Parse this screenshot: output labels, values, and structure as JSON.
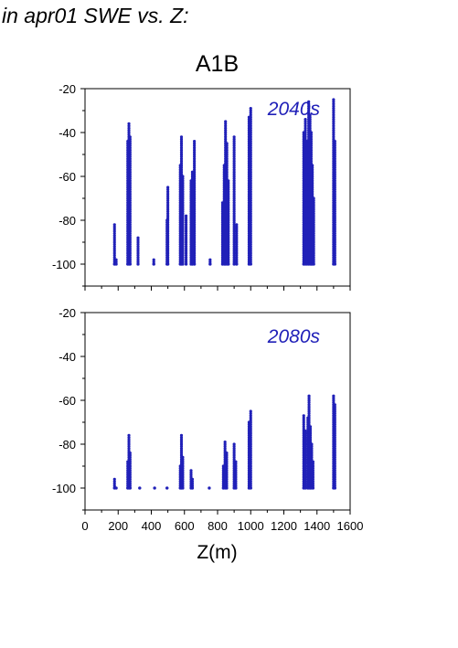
{
  "header": {
    "title": "in apr01 SWE vs. Z:"
  },
  "scenario_label": "A1B",
  "chart_data": [
    {
      "type": "scatter",
      "panel_label": "2040s",
      "xlabel": "Z(m)",
      "ylabel": "",
      "xlim": [
        0,
        1600
      ],
      "ylim": [
        -110,
        -20
      ],
      "x_ticks": [
        0,
        200,
        400,
        600,
        800,
        1000,
        1200,
        1400,
        1600
      ],
      "y_ticks": [
        -20,
        -40,
        -60,
        -80,
        -100
      ],
      "show_x_tick_labels": false,
      "point_color": "#2020b8",
      "columns": [
        {
          "x": 178,
          "min": -100,
          "max": -82
        },
        {
          "x": 188,
          "min": -100,
          "max": -98
        },
        {
          "x": 258,
          "min": -100,
          "max": -44
        },
        {
          "x": 265,
          "min": -100,
          "max": -36
        },
        {
          "x": 272,
          "min": -100,
          "max": -42
        },
        {
          "x": 320,
          "min": -100,
          "max": -88
        },
        {
          "x": 415,
          "min": -100,
          "max": -98
        },
        {
          "x": 495,
          "min": -100,
          "max": -80
        },
        {
          "x": 500,
          "min": -100,
          "max": -65
        },
        {
          "x": 575,
          "min": -100,
          "max": -55
        },
        {
          "x": 582,
          "min": -100,
          "max": -42
        },
        {
          "x": 590,
          "min": -100,
          "max": -60
        },
        {
          "x": 610,
          "min": -100,
          "max": -78
        },
        {
          "x": 640,
          "min": -100,
          "max": -62
        },
        {
          "x": 648,
          "min": -100,
          "max": -58
        },
        {
          "x": 660,
          "min": -100,
          "max": -44
        },
        {
          "x": 755,
          "min": -100,
          "max": -98
        },
        {
          "x": 830,
          "min": -100,
          "max": -72
        },
        {
          "x": 840,
          "min": -100,
          "max": -55
        },
        {
          "x": 848,
          "min": -100,
          "max": -35
        },
        {
          "x": 856,
          "min": -100,
          "max": -45
        },
        {
          "x": 865,
          "min": -100,
          "max": -62
        },
        {
          "x": 900,
          "min": -100,
          "max": -42
        },
        {
          "x": 915,
          "min": -100,
          "max": -82
        },
        {
          "x": 990,
          "min": -100,
          "max": -33
        },
        {
          "x": 1000,
          "min": -100,
          "max": -29
        },
        {
          "x": 1320,
          "min": -100,
          "max": -40
        },
        {
          "x": 1330,
          "min": -100,
          "max": -34
        },
        {
          "x": 1340,
          "min": -100,
          "max": -44
        },
        {
          "x": 1350,
          "min": -100,
          "max": -26
        },
        {
          "x": 1358,
          "min": -100,
          "max": -32
        },
        {
          "x": 1365,
          "min": -100,
          "max": -40
        },
        {
          "x": 1372,
          "min": -100,
          "max": -55
        },
        {
          "x": 1380,
          "min": -100,
          "max": -70
        },
        {
          "x": 1500,
          "min": -100,
          "max": -25
        },
        {
          "x": 1508,
          "min": -100,
          "max": -44
        }
      ]
    },
    {
      "type": "scatter",
      "panel_label": "2080s",
      "xlabel": "Z(m)",
      "ylabel": "",
      "xlim": [
        0,
        1600
      ],
      "ylim": [
        -110,
        -20
      ],
      "x_ticks": [
        0,
        200,
        400,
        600,
        800,
        1000,
        1200,
        1400,
        1600
      ],
      "y_ticks": [
        -20,
        -40,
        -60,
        -80,
        -100
      ],
      "x_tick_labels": [
        "0",
        "200",
        "400",
        "600",
        "800",
        "1000",
        "1200",
        "1400",
        "1600"
      ],
      "show_x_tick_labels": true,
      "point_color": "#2020b8",
      "columns": [
        {
          "x": 178,
          "min": -100,
          "max": -96
        },
        {
          "x": 188,
          "min": -100,
          "max": -100
        },
        {
          "x": 258,
          "min": -100,
          "max": -88
        },
        {
          "x": 265,
          "min": -100,
          "max": -76
        },
        {
          "x": 272,
          "min": -100,
          "max": -84
        },
        {
          "x": 330,
          "min": -100,
          "max": -100
        },
        {
          "x": 420,
          "min": -100,
          "max": -100
        },
        {
          "x": 495,
          "min": -100,
          "max": -100
        },
        {
          "x": 575,
          "min": -100,
          "max": -90
        },
        {
          "x": 582,
          "min": -100,
          "max": -76
        },
        {
          "x": 590,
          "min": -100,
          "max": -86
        },
        {
          "x": 640,
          "min": -100,
          "max": -92
        },
        {
          "x": 648,
          "min": -100,
          "max": -96
        },
        {
          "x": 750,
          "min": -100,
          "max": -100
        },
        {
          "x": 835,
          "min": -100,
          "max": -90
        },
        {
          "x": 845,
          "min": -100,
          "max": -79
        },
        {
          "x": 855,
          "min": -100,
          "max": -84
        },
        {
          "x": 900,
          "min": -100,
          "max": -80
        },
        {
          "x": 910,
          "min": -100,
          "max": -88
        },
        {
          "x": 990,
          "min": -100,
          "max": -70
        },
        {
          "x": 1000,
          "min": -100,
          "max": -65
        },
        {
          "x": 1320,
          "min": -100,
          "max": -67
        },
        {
          "x": 1330,
          "min": -100,
          "max": -74
        },
        {
          "x": 1345,
          "min": -100,
          "max": -68
        },
        {
          "x": 1352,
          "min": -100,
          "max": -58
        },
        {
          "x": 1360,
          "min": -100,
          "max": -72
        },
        {
          "x": 1368,
          "min": -100,
          "max": -80
        },
        {
          "x": 1376,
          "min": -100,
          "max": -88
        },
        {
          "x": 1500,
          "min": -100,
          "max": -58
        },
        {
          "x": 1508,
          "min": -100,
          "max": -62
        }
      ]
    }
  ]
}
